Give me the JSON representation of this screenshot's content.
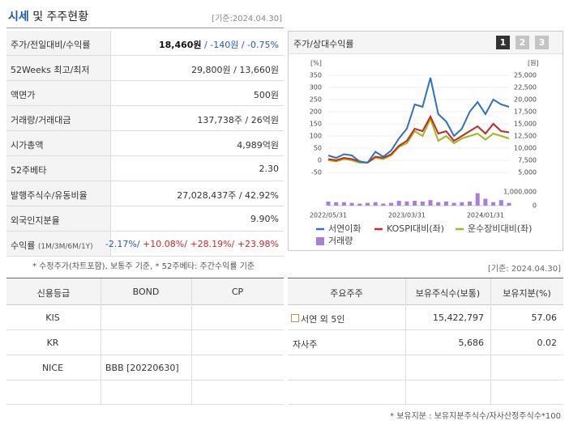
{
  "header": {
    "title_highlight": "시세",
    "title": "및 주주현황",
    "as_of": "[기준:2024.04.30]"
  },
  "summary": {
    "rows": [
      {
        "label": "주가/전일대비/수익률",
        "value": [
          {
            "text": "18,460원",
            "color": "#111111",
            "bold": true
          },
          {
            "text": "/",
            "color": "#2255cc"
          },
          {
            "text": "-140원",
            "color": "#2255cc"
          },
          {
            "text": "/",
            "color": "#2255cc"
          },
          {
            "text": "-0.75%",
            "color": "#2255cc"
          }
        ]
      },
      {
        "label": "52Weeks 최고/최저",
        "value": [
          {
            "text": "29,800원",
            "color": "#333333"
          },
          {
            "text": "/",
            "color": "#333333"
          },
          {
            "text": "13,660원",
            "color": "#333333"
          }
        ]
      },
      {
        "label": "액면가",
        "value": [
          {
            "text": "500원",
            "color": "#333333"
          }
        ]
      },
      {
        "label": "거래량/거래대금",
        "value": [
          {
            "text": "137,738주",
            "color": "#333333"
          },
          {
            "text": "/",
            "color": "#333333"
          },
          {
            "text": "26억원",
            "color": "#333333"
          }
        ]
      },
      {
        "label": "시가총액",
        "value": [
          {
            "text": "4,989억원",
            "color": "#333333"
          }
        ]
      },
      {
        "label": "52주베타",
        "value": [
          {
            "text": "2.30",
            "color": "#333333"
          }
        ]
      },
      {
        "label": "발행주식수/유동비율",
        "value": [
          {
            "text": "27,028,437주",
            "color": "#333333"
          },
          {
            "text": "/",
            "color": "#333333"
          },
          {
            "text": "42.92%",
            "color": "#333333"
          }
        ]
      },
      {
        "label": "외국인지분율",
        "value": [
          {
            "text": "9.90%",
            "color": "#333333"
          }
        ]
      },
      {
        "label": "수익률",
        "label_note": "(1M/3M/6M/1Y)",
        "value": [
          {
            "text": "-2.17%/",
            "color": "#2255cc"
          },
          {
            "text": "+10.08%/",
            "color": "#dd2222"
          },
          {
            "text": "+28.19%/",
            "color": "#dd2222"
          },
          {
            "text": "+23.98%",
            "color": "#dd2222"
          }
        ]
      }
    ],
    "footnote": "* 수정주가(차트포함), 보통주 기준, * 52주베타: 주간수익률 기준"
  },
  "price_chart": {
    "type": "line",
    "title": "주가/상대수익률",
    "buttons": [
      "1",
      "2",
      "3"
    ],
    "y_unit": "[%]",
    "y2_unit": "[원]",
    "categories": [
      "2022/05/31",
      null,
      null,
      null,
      null,
      null,
      null,
      null,
      null,
      null,
      "2023/03/31",
      null,
      null,
      null,
      null,
      null,
      null,
      null,
      null,
      null,
      "2024/01/31",
      null,
      null,
      null
    ],
    "ylim": [
      -50,
      350
    ],
    "yticks": [
      350,
      300,
      250,
      200,
      150,
      100,
      50,
      0,
      -50
    ],
    "y2lim": [
      5000,
      25000
    ],
    "y2ticks": [
      {
        "value": 25000,
        "label": "25,000"
      },
      {
        "value": 22500,
        "label": "22,500"
      },
      {
        "value": 20000,
        "label": "20,000"
      },
      {
        "value": 17500,
        "label": "17,500"
      },
      {
        "value": 15000,
        "label": "15,000"
      },
      {
        "value": 12500,
        "label": "12,500"
      },
      {
        "value": 10000,
        "label": "10,000"
      },
      {
        "value": 7500,
        "label": "7,500"
      },
      {
        "value": 5000,
        "label": "5,000"
      }
    ],
    "volume_lim": [
      0,
      1000000
    ],
    "volume_ticks": [
      {
        "value": 1000000,
        "label": "1,000,000"
      },
      0
    ],
    "grid": true,
    "series": [
      {
        "name": "서연이화",
        "color": "#2f6fc7",
        "values": [
          20,
          10,
          25,
          20,
          -5,
          -10,
          35,
          15,
          40,
          90,
          130,
          230,
          220,
          340,
          190,
          160,
          100,
          130,
          200,
          240,
          190,
          250,
          230,
          220
        ]
      },
      {
        "name": "KOSPI대비(좌)",
        "color": "#c8281e",
        "values": [
          5,
          0,
          10,
          5,
          -5,
          -10,
          15,
          10,
          25,
          60,
          80,
          130,
          120,
          180,
          110,
          120,
          80,
          100,
          120,
          140,
          110,
          150,
          120,
          115
        ]
      },
      {
        "name": "운수장비대비(좌)",
        "color": "#9bbb1d",
        "values": [
          0,
          -5,
          5,
          0,
          -10,
          -10,
          10,
          5,
          20,
          55,
          70,
          120,
          100,
          170,
          80,
          100,
          70,
          90,
          100,
          110,
          85,
          110,
          100,
          90
        ]
      }
    ],
    "volume": {
      "name": "거래량",
      "color": "#a77fd6",
      "values": [
        300000,
        250000,
        250000,
        200000,
        150000,
        200000,
        250000,
        150000,
        200000,
        350000,
        300000,
        350000,
        300000,
        400000,
        250000,
        300000,
        200000,
        250000,
        300000,
        900000,
        500000,
        250000,
        400000,
        200000
      ]
    }
  },
  "as_of_2": "[기준: 2024.04.30]",
  "credit": {
    "header": [
      "신용등급",
      "BOND",
      "CP"
    ],
    "rows": [
      [
        "KIS"
      ],
      [
        "KR"
      ],
      [
        "NICE",
        "BBB  [20220630]"
      ],
      []
    ]
  },
  "holders": {
    "header": [
      "주요주주",
      "보유주식수(보통)",
      "보유지분(%)"
    ],
    "rows": [
      [
        "서연 외 5인",
        "15,422,797",
        "57.06"
      ],
      [
        "자사주",
        "5,686",
        "0.02"
      ],
      [],
      []
    ],
    "footnote": "* 보유지분 : 보유지분주식수/자사산정주식수*100"
  }
}
